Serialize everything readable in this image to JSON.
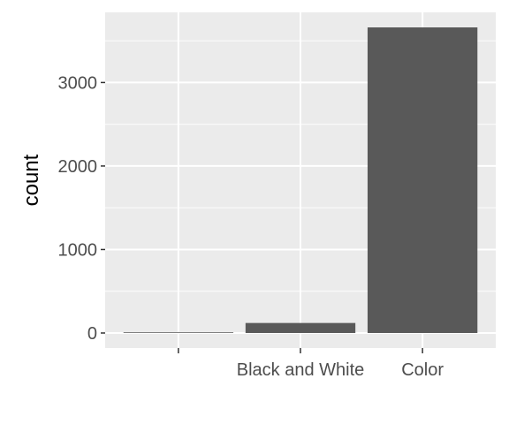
{
  "chart_data": {
    "type": "bar",
    "categories": [
      "",
      "Black and White",
      "Color"
    ],
    "values": [
      8,
      120,
      3660
    ],
    "xlabel": "",
    "ylabel": "count",
    "ylim": [
      -180,
      3840
    ],
    "yticks": [
      0,
      1000,
      2000,
      3000
    ],
    "grid": true,
    "legend": "none",
    "colors": {
      "panel": "#ebebeb",
      "grid": "#ffffff",
      "bar": "#595959",
      "tick": "#333333"
    }
  }
}
